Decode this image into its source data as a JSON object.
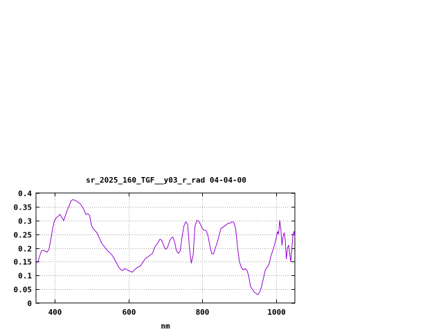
{
  "chart_data": {
    "type": "line",
    "title": "sr_2025_160_TGF__y03_r_rad 04-04-00",
    "xlabel": "nm",
    "ylabel": "",
    "xlim": [
      350,
      1050
    ],
    "ylim": [
      0,
      0.4
    ],
    "grid": true,
    "legend": "none",
    "x_ticks": [
      400,
      600,
      800,
      1000
    ],
    "x_tick_labels": [
      "400",
      "600",
      "800",
      "1000"
    ],
    "y_ticks": [
      0,
      0.05,
      0.1,
      0.15,
      0.2,
      0.25,
      0.3,
      0.35,
      0.4
    ],
    "y_tick_labels": [
      "0",
      "0.05",
      "0.1",
      "0.15",
      "0.2",
      "0.25",
      "0.3",
      "0.35",
      "0.4"
    ],
    "colors": {
      "series": "#9400d3",
      "grid": "#a0a0a0",
      "axes": "#000000"
    },
    "series": [
      {
        "x": [
          350,
          355,
          360,
          365,
          370,
          375,
          380,
          385,
          390,
          395,
          400,
          405,
          410,
          415,
          420,
          425,
          430,
          435,
          440,
          445,
          450,
          455,
          460,
          465,
          470,
          475,
          480,
          485,
          490,
          495,
          500,
          505,
          510,
          515,
          520,
          525,
          530,
          535,
          540,
          545,
          550,
          555,
          560,
          565,
          570,
          575,
          580,
          585,
          590,
          595,
          600,
          605,
          610,
          615,
          620,
          625,
          630,
          635,
          640,
          645,
          650,
          655,
          660,
          665,
          670,
          675,
          680,
          685,
          690,
          695,
          700,
          705,
          710,
          715,
          720,
          725,
          730,
          735,
          740,
          745,
          750,
          755,
          760,
          765,
          770,
          775,
          780,
          785,
          790,
          795,
          800,
          805,
          810,
          815,
          820,
          825,
          830,
          835,
          840,
          845,
          850,
          855,
          860,
          865,
          870,
          875,
          880,
          885,
          890,
          895,
          900,
          905,
          910,
          915,
          920,
          925,
          930,
          935,
          940,
          945,
          950,
          955,
          960,
          965,
          970,
          975,
          980,
          985,
          990,
          995,
          1000,
          1003,
          1006,
          1009,
          1012,
          1015,
          1018,
          1021,
          1024,
          1027,
          1030,
          1033,
          1036,
          1039,
          1042,
          1045,
          1048,
          1050
        ],
        "values": [
          0.145,
          0.15,
          0.17,
          0.19,
          0.192,
          0.188,
          0.185,
          0.195,
          0.23,
          0.27,
          0.3,
          0.31,
          0.315,
          0.322,
          0.31,
          0.3,
          0.32,
          0.34,
          0.355,
          0.372,
          0.376,
          0.373,
          0.37,
          0.365,
          0.36,
          0.35,
          0.338,
          0.322,
          0.325,
          0.318,
          0.282,
          0.27,
          0.262,
          0.255,
          0.24,
          0.225,
          0.212,
          0.205,
          0.196,
          0.188,
          0.182,
          0.175,
          0.165,
          0.152,
          0.14,
          0.128,
          0.12,
          0.118,
          0.125,
          0.122,
          0.118,
          0.115,
          0.112,
          0.118,
          0.125,
          0.13,
          0.132,
          0.14,
          0.15,
          0.16,
          0.165,
          0.17,
          0.175,
          0.18,
          0.2,
          0.21,
          0.22,
          0.232,
          0.228,
          0.21,
          0.195,
          0.2,
          0.22,
          0.235,
          0.24,
          0.22,
          0.19,
          0.18,
          0.19,
          0.24,
          0.28,
          0.295,
          0.285,
          0.2,
          0.145,
          0.175,
          0.28,
          0.3,
          0.298,
          0.285,
          0.27,
          0.265,
          0.263,
          0.245,
          0.21,
          0.18,
          0.178,
          0.2,
          0.22,
          0.245,
          0.27,
          0.275,
          0.28,
          0.285,
          0.29,
          0.29,
          0.295,
          0.293,
          0.27,
          0.2,
          0.15,
          0.13,
          0.12,
          0.125,
          0.12,
          0.1,
          0.06,
          0.05,
          0.04,
          0.035,
          0.03,
          0.04,
          0.06,
          0.09,
          0.12,
          0.13,
          0.14,
          0.17,
          0.19,
          0.21,
          0.24,
          0.26,
          0.25,
          0.3,
          0.27,
          0.21,
          0.24,
          0.255,
          0.23,
          0.16,
          0.2,
          0.21,
          0.18,
          0.15,
          0.2,
          0.25,
          0.26,
          0.24
        ]
      }
    ]
  }
}
